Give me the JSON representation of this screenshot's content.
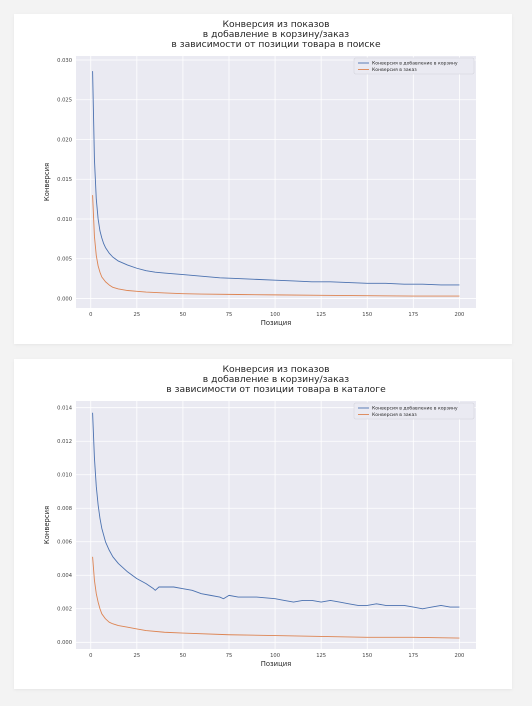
{
  "chart_data": [
    {
      "type": "line",
      "title_lines": [
        "Конверсия из показов",
        "в добавление в корзину/заказ",
        "в зависимости от позиции товара в поиске"
      ],
      "xlabel": "Позиция",
      "ylabel": "Конверсия",
      "xlim": [
        -8,
        209
      ],
      "ylim": [
        -0.0012,
        0.0305
      ],
      "xticks": [
        0,
        25,
        50,
        75,
        100,
        125,
        150,
        175,
        200
      ],
      "yticks": [
        0.0,
        0.005,
        0.01,
        0.015,
        0.02,
        0.025,
        0.03
      ],
      "ytick_labels": [
        "0.000",
        "0.005",
        "0.010",
        "0.015",
        "0.020",
        "0.025",
        "0.030"
      ],
      "grid": true,
      "legend_position": "top-right",
      "series": [
        {
          "name": "Конверсия в добавление в корзину",
          "color": "#4c72b0",
          "points": [
            [
              1,
              0.0286
            ],
            [
              2,
              0.0175
            ],
            [
              3,
              0.0125
            ],
            [
              4,
              0.01
            ],
            [
              5,
              0.0085
            ],
            [
              6,
              0.0076
            ],
            [
              7,
              0.0069
            ],
            [
              8,
              0.0064
            ],
            [
              10,
              0.0057
            ],
            [
              12,
              0.0052
            ],
            [
              15,
              0.0047
            ],
            [
              20,
              0.0042
            ],
            [
              25,
              0.0038
            ],
            [
              30,
              0.0035
            ],
            [
              35,
              0.0033
            ],
            [
              40,
              0.0032
            ],
            [
              50,
              0.003
            ],
            [
              60,
              0.0028
            ],
            [
              70,
              0.0026
            ],
            [
              80,
              0.0025
            ],
            [
              90,
              0.0024
            ],
            [
              100,
              0.0023
            ],
            [
              110,
              0.0022
            ],
            [
              120,
              0.0021
            ],
            [
              130,
              0.0021
            ],
            [
              140,
              0.002
            ],
            [
              150,
              0.0019
            ],
            [
              160,
              0.0019
            ],
            [
              170,
              0.0018
            ],
            [
              180,
              0.0018
            ],
            [
              190,
              0.0017
            ],
            [
              200,
              0.0017
            ]
          ]
        },
        {
          "name": "Конверсия в заказ",
          "color": "#dd8452",
          "points": [
            [
              1,
              0.013
            ],
            [
              2,
              0.0078
            ],
            [
              3,
              0.0054
            ],
            [
              4,
              0.0041
            ],
            [
              5,
              0.0033
            ],
            [
              6,
              0.0027
            ],
            [
              8,
              0.0021
            ],
            [
              10,
              0.0017
            ],
            [
              12,
              0.0014
            ],
            [
              15,
              0.0012
            ],
            [
              20,
              0.001
            ],
            [
              25,
              0.0009
            ],
            [
              30,
              0.0008
            ],
            [
              40,
              0.0007
            ],
            [
              50,
              0.0006
            ],
            [
              60,
              0.00055
            ],
            [
              80,
              0.0005
            ],
            [
              100,
              0.00045
            ],
            [
              125,
              0.0004
            ],
            [
              150,
              0.00035
            ],
            [
              175,
              0.0003
            ],
            [
              200,
              0.0003
            ]
          ]
        }
      ]
    },
    {
      "type": "line",
      "title_lines": [
        "Конверсия из показов",
        "в добавление в корзину/заказ",
        "в зависимости от позиции товара в каталоге"
      ],
      "xlabel": "Позиция",
      "ylabel": "Конверсия",
      "xlim": [
        -8,
        209
      ],
      "ylim": [
        -0.0004,
        0.0144
      ],
      "xticks": [
        0,
        25,
        50,
        75,
        100,
        125,
        150,
        175,
        200
      ],
      "yticks": [
        0.0,
        0.002,
        0.004,
        0.006,
        0.008,
        0.01,
        0.012,
        0.014
      ],
      "ytick_labels": [
        "0.000",
        "0.002",
        "0.004",
        "0.006",
        "0.008",
        "0.010",
        "0.012",
        "0.014"
      ],
      "grid": true,
      "legend_position": "top-right",
      "series": [
        {
          "name": "Конверсия в добавление в корзину",
          "color": "#4c72b0",
          "points": [
            [
              1,
              0.0137
            ],
            [
              2,
              0.011
            ],
            [
              3,
              0.0093
            ],
            [
              4,
              0.0082
            ],
            [
              5,
              0.0074
            ],
            [
              6,
              0.0068
            ],
            [
              8,
              0.006
            ],
            [
              10,
              0.0055
            ],
            [
              12,
              0.0051
            ],
            [
              15,
              0.0047
            ],
            [
              20,
              0.0042
            ],
            [
              25,
              0.0038
            ],
            [
              30,
              0.0035
            ],
            [
              34,
              0.0032
            ],
            [
              35,
              0.0031
            ],
            [
              37,
              0.0033
            ],
            [
              40,
              0.0033
            ],
            [
              45,
              0.0033
            ],
            [
              50,
              0.0032
            ],
            [
              55,
              0.0031
            ],
            [
              60,
              0.0029
            ],
            [
              65,
              0.0028
            ],
            [
              70,
              0.0027
            ],
            [
              72,
              0.0026
            ],
            [
              75,
              0.0028
            ],
            [
              80,
              0.0027
            ],
            [
              90,
              0.0027
            ],
            [
              100,
              0.0026
            ],
            [
              105,
              0.0025
            ],
            [
              110,
              0.0024
            ],
            [
              115,
              0.0025
            ],
            [
              120,
              0.0025
            ],
            [
              125,
              0.0024
            ],
            [
              130,
              0.0025
            ],
            [
              135,
              0.0024
            ],
            [
              140,
              0.0023
            ],
            [
              145,
              0.0022
            ],
            [
              150,
              0.0022
            ],
            [
              155,
              0.0023
            ],
            [
              160,
              0.0022
            ],
            [
              165,
              0.0022
            ],
            [
              170,
              0.0022
            ],
            [
              175,
              0.0021
            ],
            [
              180,
              0.002
            ],
            [
              185,
              0.0021
            ],
            [
              190,
              0.0022
            ],
            [
              195,
              0.0021
            ],
            [
              200,
              0.0021
            ]
          ]
        },
        {
          "name": "Конверсия в заказ",
          "color": "#dd8452",
          "points": [
            [
              1,
              0.0051
            ],
            [
              2,
              0.0037
            ],
            [
              3,
              0.0029
            ],
            [
              4,
              0.0024
            ],
            [
              5,
              0.002
            ],
            [
              6,
              0.0017
            ],
            [
              8,
              0.0014
            ],
            [
              10,
              0.0012
            ],
            [
              12,
              0.0011
            ],
            [
              15,
              0.001
            ],
            [
              20,
              0.0009
            ],
            [
              25,
              0.0008
            ],
            [
              30,
              0.0007
            ],
            [
              40,
              0.0006
            ],
            [
              50,
              0.00055
            ],
            [
              75,
              0.00045
            ],
            [
              100,
              0.0004
            ],
            [
              125,
              0.00035
            ],
            [
              150,
              0.0003
            ],
            [
              175,
              0.0003
            ],
            [
              200,
              0.00025
            ]
          ]
        }
      ]
    }
  ]
}
